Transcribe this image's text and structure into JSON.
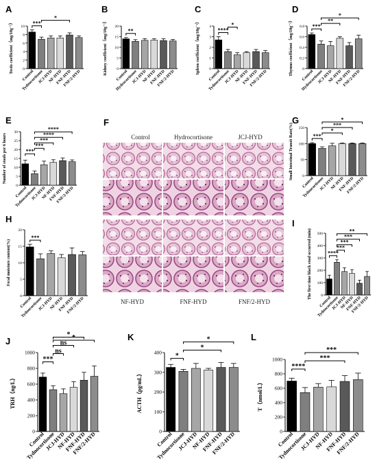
{
  "groups": [
    "Control",
    "Hydrocortisone",
    "JCJ-HYD",
    "NF-HYD",
    "FNF-HYD",
    "FNF/2-HYD"
  ],
  "colors": [
    "#000000",
    "#7f7f7f",
    "#a6a6a6",
    "#d9d9d9",
    "#595959",
    "#8c8c8c"
  ],
  "histology": {
    "panel_letter": "F",
    "top_labels": [
      "Control",
      "Hydrocortisone",
      "JCJ-HYD"
    ],
    "bottom_labels": [
      "NF-HYD",
      "FNF-HYD",
      "FNF/2-HYD"
    ]
  },
  "chart_data": [
    {
      "id": "A",
      "type": "bar",
      "ylabel": "Testis coefficient（mg/10g⁻¹）",
      "categories": [
        "Control",
        "Tydnocortisone",
        "JCJ-HYD",
        "NF-HYD",
        "FNF-HYD",
        "FNF/2-HYD"
      ],
      "values": [
        8.6,
        6.9,
        7.2,
        7.2,
        7.9,
        7.3
      ],
      "errors": [
        0.5,
        0.5,
        0.5,
        0.5,
        0.5,
        0.4
      ],
      "ylim": [
        0,
        10
      ],
      "yticks": [
        0,
        2,
        4,
        6,
        8,
        10
      ],
      "sig": [
        {
          "a": 0,
          "b": 1,
          "label": "***"
        },
        {
          "a": 1,
          "b": 4,
          "label": "*"
        }
      ]
    },
    {
      "id": "B",
      "type": "bar",
      "ylabel": "Kidney coefficient（mg/10g⁻¹）",
      "categories": [
        "Control",
        "Hydrocortisone",
        "JCJ-HYD",
        "NF-HYD",
        "FNF-HYD",
        "FNF/2-HYD"
      ],
      "values": [
        14.0,
        12.8,
        13.3,
        13.4,
        13.2,
        13.0
      ],
      "errors": [
        0.6,
        0.8,
        0.8,
        0.6,
        0.8,
        0.7
      ],
      "ylim": [
        0,
        20
      ],
      "yticks": [
        0,
        5,
        10,
        15,
        20
      ],
      "sig": [
        {
          "a": 0,
          "b": 1,
          "label": "**"
        }
      ]
    },
    {
      "id": "C",
      "type": "bar",
      "ylabel": "Spleen coefficient（mg/10g⁻¹）",
      "categories": [
        "Control",
        "Tydnocortisone",
        "JCJ-HYD",
        "NF-HYD",
        "FNF-HYD",
        "FNF/2-HYD"
      ],
      "values": [
        2.7,
        1.6,
        1.3,
        1.5,
        1.6,
        1.5
      ],
      "errors": [
        0.3,
        0.2,
        0.2,
        0.1,
        0.2,
        0.2
      ],
      "ylim": [
        0,
        4
      ],
      "yticks": [
        0,
        1,
        2,
        3,
        4
      ],
      "sig": [
        {
          "a": 0,
          "b": 1,
          "label": "****"
        },
        {
          "a": 1,
          "b": 2,
          "label": "*"
        }
      ]
    },
    {
      "id": "D",
      "type": "bar",
      "ylabel": "Thymus coefficient（mg/10g⁻¹）",
      "categories": [
        "Control",
        "Hydrocortisone",
        "JCJ-HYD",
        "NF-HYD",
        "FNF-HYD",
        "FNF/2-HYD"
      ],
      "values": [
        0.64,
        0.46,
        0.43,
        0.57,
        0.43,
        0.56
      ],
      "errors": [
        0.03,
        0.06,
        0.08,
        0.03,
        0.06,
        0.07
      ],
      "ylim": [
        0,
        0.8
      ],
      "yticks": [
        0.0,
        0.2,
        0.4,
        0.6,
        0.8
      ],
      "sig": [
        {
          "a": 0,
          "b": 1,
          "label": "***"
        },
        {
          "a": 1,
          "b": 3,
          "label": "**"
        },
        {
          "a": 1,
          "b": 5,
          "label": "*"
        }
      ]
    },
    {
      "id": "E",
      "type": "bar",
      "ylabel": "Number of stools per 6 hours",
      "categories": [
        "Control",
        "Tydnocortisone",
        "JCJ-HYD",
        "NF-HYD",
        "FNF-HYD",
        "FNF/2-HYD"
      ],
      "values": [
        12.0,
        6.5,
        11.5,
        12.8,
        13.8,
        13.2
      ],
      "errors": [
        2.0,
        1.5,
        2.0,
        1.5,
        1.5,
        1.0
      ],
      "ylim": [
        0,
        30
      ],
      "yticks": [
        0,
        5,
        10,
        15,
        20,
        25,
        30
      ],
      "sig": [
        {
          "a": 0,
          "b": 1,
          "label": "***"
        },
        {
          "a": 1,
          "b": 2,
          "label": "***"
        },
        {
          "a": 1,
          "b": 3,
          "label": "***"
        },
        {
          "a": 1,
          "b": 4,
          "label": "****"
        },
        {
          "a": 1,
          "b": 5,
          "label": "****"
        }
      ]
    },
    {
      "id": "G",
      "type": "bar",
      "ylabel": "Small Intestinal Transit Rate(%)",
      "categories": [
        "Control",
        "Tydnocortisone",
        "JCJ-HYD",
        "NF-HYD",
        "FNF-HYD",
        "FNF/2-HYD"
      ],
      "values": [
        100,
        85,
        93,
        100,
        100,
        100
      ],
      "errors": [
        3,
        5,
        8,
        2,
        2,
        2
      ],
      "ylim": [
        0,
        150
      ],
      "yticks": [
        0,
        50,
        100,
        150
      ],
      "sig": [
        {
          "a": 0,
          "b": 1,
          "label": "***"
        },
        {
          "a": 1,
          "b": 3,
          "label": "*"
        },
        {
          "a": 1,
          "b": 4,
          "label": "***"
        },
        {
          "a": 1,
          "b": 5,
          "label": "*"
        }
      ]
    },
    {
      "id": "H",
      "type": "bar",
      "ylabel": "Fecal moisture content(%)",
      "categories": [
        "Control",
        "Tydnocortisone",
        "JCJ-HYD",
        "NF-HYD",
        "FNF-HYD",
        "FNF/2-HYD"
      ],
      "values": [
        14.8,
        11.2,
        12.8,
        11.5,
        12.5,
        12.4
      ],
      "errors": [
        0.8,
        1.5,
        0.8,
        1.0,
        2.0,
        1.0
      ],
      "ylim": [
        0,
        20
      ],
      "yticks": [
        0,
        5,
        10,
        15,
        20
      ],
      "sig": [
        {
          "a": 0,
          "b": 1,
          "label": "***"
        }
      ]
    },
    {
      "id": "I",
      "type": "bar",
      "ylabel": "The first time black stool occurred (min)",
      "categories": [
        "Control",
        "Tydnocortisone",
        "JCJ-HYD",
        "NF-HYD",
        "FNF-HYD",
        "FNF/2-HYD"
      ],
      "values": [
        130,
        265,
        190,
        175,
        95,
        150
      ],
      "errors": [
        30,
        20,
        30,
        30,
        25,
        40
      ],
      "ylim": [
        0,
        500
      ],
      "yticks": [
        0,
        100,
        200,
        300,
        400,
        500
      ],
      "sig": [
        {
          "a": 0,
          "b": 1,
          "label": "****"
        },
        {
          "a": 1,
          "b": 2,
          "label": "***"
        },
        {
          "a": 1,
          "b": 3,
          "label": "***"
        },
        {
          "a": 1,
          "b": 4,
          "label": "***"
        },
        {
          "a": 1,
          "b": 5,
          "label": "**"
        }
      ]
    },
    {
      "id": "J",
      "type": "bar",
      "ylabel": "TRH（ng/L）",
      "categories": [
        "Control",
        "Tydnocortisone",
        "JCJ-HYD",
        "NF-HYD",
        "FNF-HYD",
        "FNF/2-HYD"
      ],
      "values": [
        690,
        530,
        480,
        560,
        650,
        700
      ],
      "errors": [
        50,
        50,
        60,
        70,
        100,
        130
      ],
      "ylim": [
        0,
        1000
      ],
      "yticks": [
        0,
        200,
        400,
        600,
        800,
        1000
      ],
      "sig": [
        {
          "a": 0,
          "b": 1,
          "label": "***"
        },
        {
          "a": 1,
          "b": 2,
          "label": "ns"
        },
        {
          "a": 1,
          "b": 3,
          "label": "ns"
        },
        {
          "a": 1,
          "b": 4,
          "label": "*"
        },
        {
          "a": 1,
          "b": 5,
          "label": "*"
        }
      ]
    },
    {
      "id": "K",
      "type": "bar",
      "ylabel": "ACTH（pg/mL）",
      "categories": [
        "Control",
        "Tydnocortisone",
        "JCJ-HYD",
        "NF-HYD",
        "FNF-HYD",
        "FNF/2-HYD"
      ],
      "values": [
        325,
        305,
        320,
        312,
        325,
        325
      ],
      "errors": [
        15,
        10,
        25,
        8,
        25,
        20
      ],
      "ylim": [
        0,
        400
      ],
      "yticks": [
        0,
        100,
        200,
        300,
        400
      ],
      "sig": [
        {
          "a": 0,
          "b": 1,
          "label": "*"
        },
        {
          "a": 1,
          "b": 4,
          "label": "*"
        },
        {
          "a": 1,
          "b": 5,
          "label": "*"
        }
      ]
    },
    {
      "id": "L",
      "type": "bar",
      "ylabel": "T（nmol/L）",
      "categories": [
        "Control",
        "Tydnocortisone",
        "JCJ-HYD",
        "NF-HYD",
        "FNF-HYD",
        "FNF/2-HYD"
      ],
      "values": [
        700,
        540,
        615,
        620,
        695,
        720
      ],
      "errors": [
        40,
        70,
        50,
        90,
        80,
        90
      ],
      "ylim": [
        0,
        1000
      ],
      "yticks": [
        0,
        200,
        400,
        600,
        800,
        1000
      ],
      "sig": [
        {
          "a": 0,
          "b": 1,
          "label": "****"
        },
        {
          "a": 1,
          "b": 4,
          "label": "***"
        },
        {
          "a": 1,
          "b": 5,
          "label": "***"
        }
      ]
    }
  ]
}
